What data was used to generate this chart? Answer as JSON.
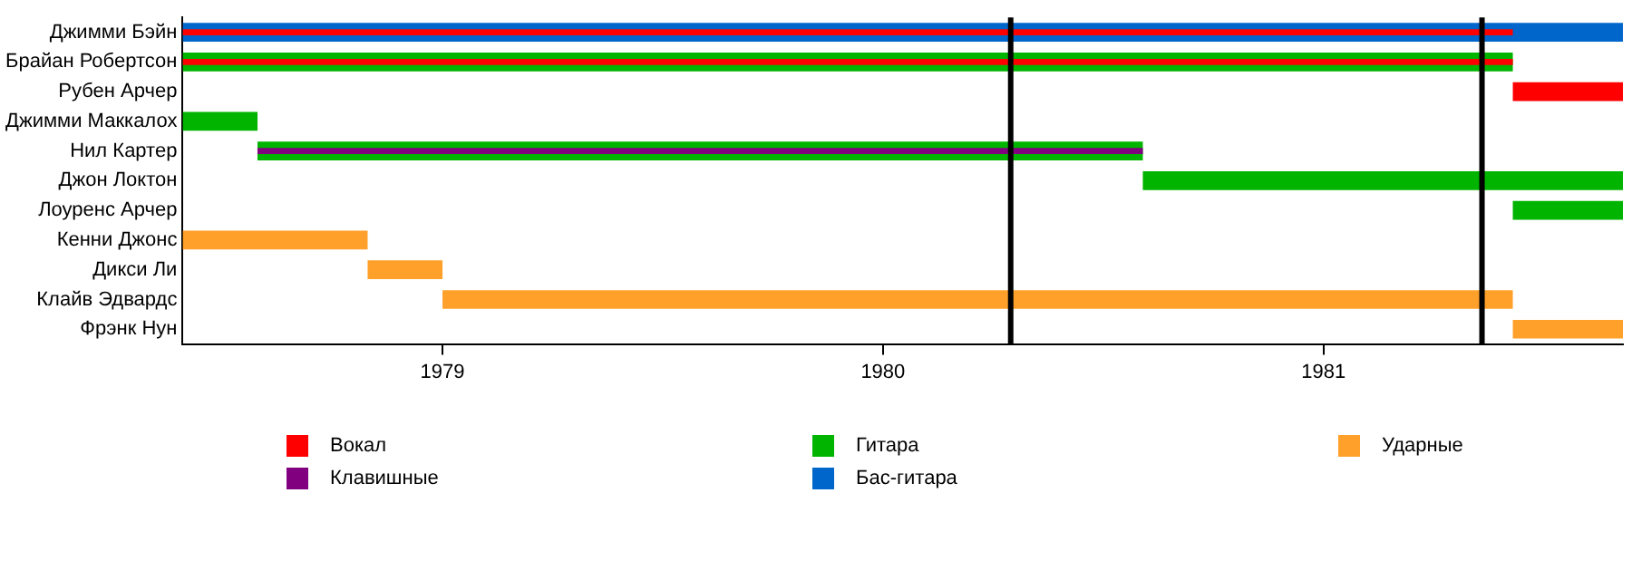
{
  "chart_data": {
    "type": "bar",
    "orientation": "horizontal",
    "categories": [
      "Джимми Бэйн",
      "Брайан Робертсон",
      "Рубен Арчер",
      "Джимми Маккалох",
      "Нил Картер",
      "Джон Локтон",
      "Лоуренс Арчер",
      "Кенни Джонс",
      "Дикси Ли",
      "Клайв Эдвардс",
      "Фрэнк Нун"
    ],
    "series": [
      {
        "name": "Вокал",
        "color": "#ff0000",
        "base": [
          1978.41,
          1978.41,
          1981.43,
          null,
          null,
          null,
          null,
          null,
          null,
          null,
          null
        ],
        "values": [
          3.02,
          3.02,
          0.25,
          null,
          null,
          null,
          null,
          null,
          null,
          null,
          null
        ]
      },
      {
        "name": "Клавишные",
        "color": "#800080",
        "base": [
          null,
          null,
          null,
          null,
          1978.58,
          null,
          null,
          null,
          null,
          null,
          null
        ],
        "values": [
          null,
          null,
          null,
          null,
          2.01,
          null,
          null,
          null,
          null,
          null,
          null
        ]
      },
      {
        "name": "Гитара",
        "color": "#00b400",
        "base": [
          null,
          1978.41,
          null,
          1978.41,
          1978.58,
          1980.59,
          1981.43,
          null,
          null,
          null,
          null
        ],
        "values": [
          null,
          3.02,
          null,
          0.17,
          2.01,
          1.09,
          0.25,
          null,
          null,
          null,
          null
        ]
      },
      {
        "name": "Бас-гитара",
        "color": "#0066cc",
        "base": [
          1978.41,
          null,
          null,
          null,
          null,
          null,
          null,
          null,
          null,
          null,
          null
        ],
        "values": [
          3.27,
          null,
          null,
          null,
          null,
          null,
          null,
          null,
          null,
          null,
          null
        ]
      },
      {
        "name": "Ударные",
        "color": "#ffa02a",
        "base": [
          null,
          null,
          null,
          null,
          null,
          null,
          null,
          1978.41,
          1978.83,
          1979.0,
          1981.43
        ],
        "values": [
          null,
          null,
          null,
          null,
          null,
          null,
          null,
          0.42,
          0.17,
          2.43,
          0.25
        ]
      }
    ],
    "xlim": [
      1978.41,
      1981.68
    ],
    "xticks": [
      1979,
      1980,
      1981
    ],
    "ref_lines": [
      {
        "axis": "x",
        "value": 1980.29,
        "color": "#000000"
      },
      {
        "axis": "x",
        "value": 1981.36,
        "color": "#000000"
      }
    ],
    "grid": false,
    "legend": "bottom"
  }
}
